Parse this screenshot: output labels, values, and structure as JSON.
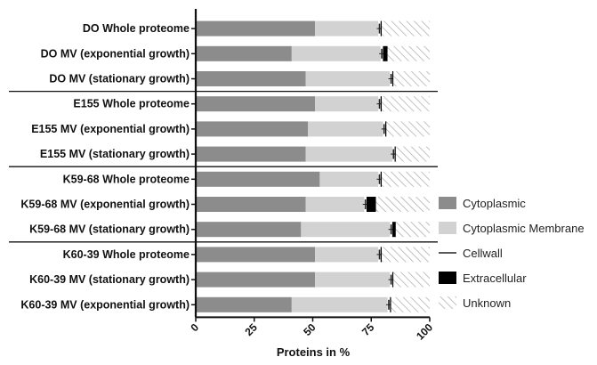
{
  "chart_data": {
    "type": "bar",
    "orientation": "horizontal",
    "stacked": true,
    "xlabel": "Proteins in %",
    "ylabel": "",
    "xlim": [
      0,
      100
    ],
    "xticks": [
      "0",
      "25",
      "50",
      "75",
      "100"
    ],
    "grid": false,
    "legend_position": "right",
    "categories": [
      "DO Whole proteome",
      "DO MV (exponential growth)",
      "DO MV (stationary growth)",
      "E155 Whole proteome",
      "E155 MV (exponential growth)",
      "E155 MV (stationary growth)",
      "K59-68 Whole proteome",
      "K59-68 MV (exponential growth)",
      "K59-68 MV (stationary growth)",
      "K60-39 Whole proteome",
      "K60-39 MV (stationary growth)",
      "K60-39 MV (exponential growth)"
    ],
    "groups": [
      [
        0,
        1,
        2
      ],
      [
        3,
        4,
        5
      ],
      [
        6,
        7,
        8
      ],
      [
        9,
        10,
        11
      ]
    ],
    "series": [
      {
        "name": "Cytoplasmic",
        "color": "#8c8c8c",
        "pattern": "solid",
        "values": [
          51,
          41,
          47,
          51,
          48,
          47,
          53,
          47,
          45,
          51,
          51,
          41
        ]
      },
      {
        "name": "Cytoplasmic Membrane",
        "color": "#d2d2d2",
        "pattern": "solid",
        "values": [
          27,
          38,
          36,
          27,
          32,
          37,
          25,
          25,
          38,
          27,
          32,
          41
        ]
      },
      {
        "name": "Cellwall",
        "color": "#222222",
        "pattern": "line",
        "values": [
          1,
          1,
          1,
          1,
          1,
          1,
          1,
          1,
          1,
          1,
          1,
          1
        ]
      },
      {
        "name": "Extracellular",
        "color": "#000000",
        "pattern": "solid",
        "values": [
          0.5,
          2,
          0.5,
          0.5,
          0.5,
          0.5,
          0.5,
          4,
          1.5,
          0.5,
          0.5,
          0.5
        ]
      },
      {
        "name": "Unknown",
        "color": "#9a9a9a",
        "pattern": "hatch",
        "values": [
          20.5,
          18,
          15.5,
          20.5,
          18.5,
          14.5,
          20.5,
          23,
          14.5,
          20.5,
          15.5,
          16.5
        ]
      }
    ]
  }
}
